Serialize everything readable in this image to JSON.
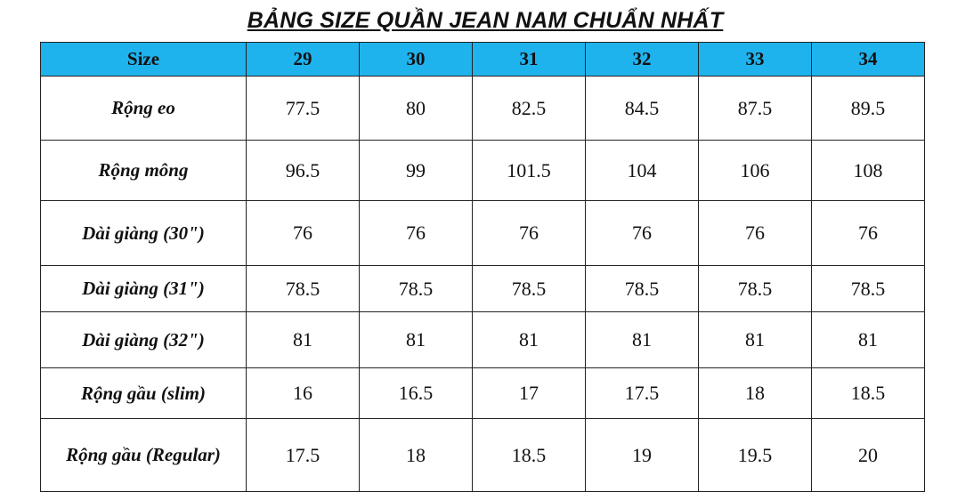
{
  "title": "BẢNG SIZE QUẦN JEAN NAM CHUẨN NHẤT",
  "header": {
    "label": "Size",
    "sizes": [
      "29",
      "30",
      "31",
      "32",
      "33",
      "34"
    ]
  },
  "rows": [
    {
      "label": "Rộng eo",
      "values": [
        "77.5",
        "80",
        "82.5",
        "84.5",
        "87.5",
        "89.5"
      ]
    },
    {
      "label": "Rộng mông",
      "values": [
        "96.5",
        "99",
        "101.5",
        "104",
        "106",
        "108"
      ]
    },
    {
      "label": "Dài giàng (30\")",
      "values": [
        "76",
        "76",
        "76",
        "76",
        "76",
        "76"
      ]
    },
    {
      "label": "Dài giàng (31\")",
      "values": [
        "78.5",
        "78.5",
        "78.5",
        "78.5",
        "78.5",
        "78.5"
      ]
    },
    {
      "label": "Dài giàng (32\")",
      "values": [
        "81",
        "81",
        "81",
        "81",
        "81",
        "81"
      ]
    },
    {
      "label": "Rộng gầu (slim)",
      "values": [
        "16",
        "16.5",
        "17",
        "17.5",
        "18",
        "18.5"
      ]
    },
    {
      "label": "Rộng gầu (Regular)",
      "values": [
        "17.5",
        "18",
        "18.5",
        "19",
        "19.5",
        "20"
      ]
    }
  ],
  "colors": {
    "header_bg": "#1fb3ee",
    "border": "#222222"
  }
}
